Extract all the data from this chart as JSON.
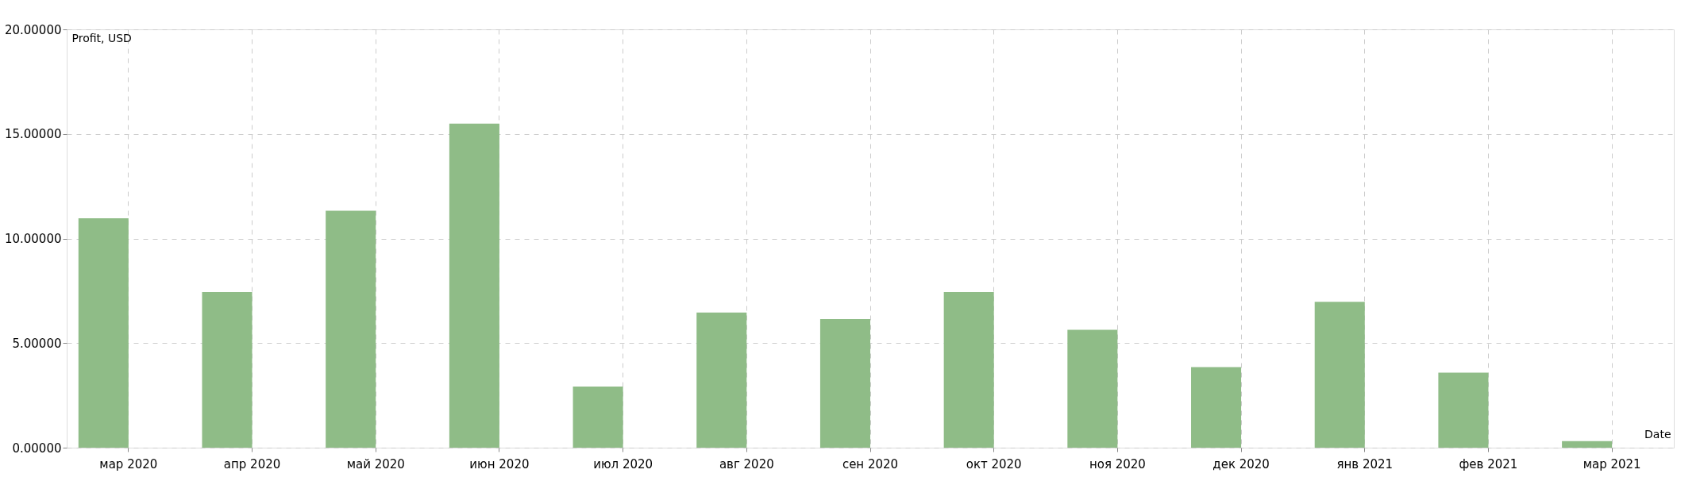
{
  "chart_data": {
    "type": "bar",
    "xlabel": "Date",
    "ylabel": "Profit, USD",
    "categories": [
      "мар 2020",
      "апр 2020",
      "май 2020",
      "июн 2020",
      "июл 2020",
      "авг 2020",
      "сен 2020",
      "окт 2020",
      "ноя 2020",
      "дек 2020",
      "янв 2021",
      "фев 2021",
      "мар 2021"
    ],
    "values": [
      10.97,
      7.44,
      11.33,
      15.49,
      2.92,
      6.46,
      6.15,
      7.44,
      5.64,
      3.85,
      6.97,
      3.59,
      0.31
    ],
    "color": "#8fbc87",
    "ylim": [
      0,
      20
    ],
    "yticks": [
      {
        "value": 0,
        "label": "0.00000"
      },
      {
        "value": 5,
        "label": "5.00000"
      },
      {
        "value": 10,
        "label": "10.00000"
      },
      {
        "value": 15,
        "label": "15.00000"
      },
      {
        "value": 20,
        "label": "20.00000"
      }
    ],
    "grid": true
  }
}
